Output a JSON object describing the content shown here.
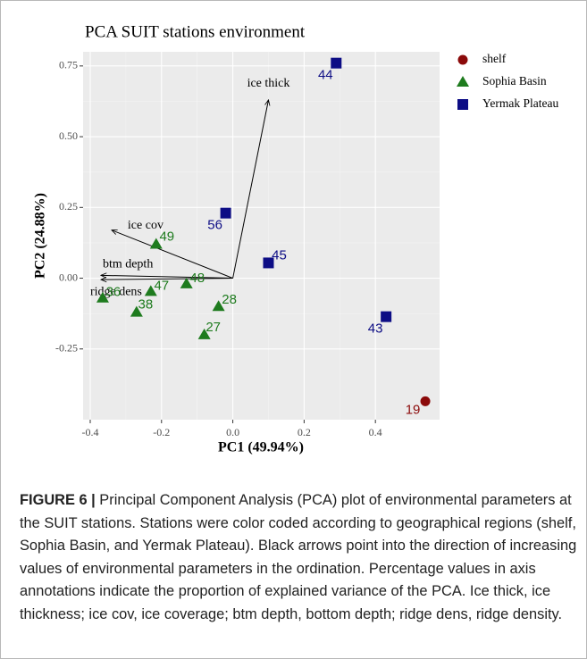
{
  "chart_data": {
    "type": "scatter",
    "title": "PCA SUIT stations environment",
    "x_label": "PC1 (49.94%)",
    "y_label": "PC2 (24.88%)",
    "xlim": [
      -0.42,
      0.58
    ],
    "ylim": [
      -0.5,
      0.8
    ],
    "xticks": [
      -0.4,
      -0.2,
      {
        "value": 0,
        "label": "0.0"
      },
      0.2,
      0.4
    ],
    "yticks": [
      -0.25,
      {
        "value": 0,
        "label": "0.00"
      },
      0.25,
      {
        "value": 0.5,
        "label": "0.50"
      },
      0.75
    ],
    "grid": true,
    "legend": "right",
    "series": [
      {
        "name": "shelf",
        "color": "#8b0a0a",
        "marker": "circle",
        "x": [
          0.54
        ],
        "y": [
          -0.435
        ],
        "labels": [
          "19"
        ]
      },
      {
        "name": "Sophia Basin",
        "color": "#1e7b1e",
        "marker": "triangle",
        "x": [
          -0.215,
          -0.13,
          -0.23,
          -0.04,
          -0.27,
          -0.08,
          -0.365
        ],
        "y": [
          0.12,
          -0.02,
          -0.047,
          -0.1,
          -0.12,
          -0.2,
          -0.07
        ],
        "labels": [
          "49",
          "48",
          "47",
          "28",
          "38",
          "27",
          "36"
        ]
      },
      {
        "name": "Yermak Plateau",
        "color": "#0d0d85",
        "marker": "square",
        "x": [
          0.29,
          -0.02,
          0.1,
          0.43
        ],
        "y": [
          0.76,
          0.23,
          0.054,
          -0.136
        ],
        "labels": [
          "44",
          "56",
          "45",
          "43"
        ]
      }
    ],
    "loadings": [
      {
        "name": "ice thick",
        "x": 0.1,
        "y": 0.63
      },
      {
        "name": "ice cov",
        "x": -0.34,
        "y": 0.17
      },
      {
        "name": "btm depth",
        "x": -0.37,
        "y": 0.01
      },
      {
        "name": "ridge dens",
        "x": -0.37,
        "y": -0.005
      }
    ]
  },
  "caption": {
    "label": "FIGURE 6 |",
    "text": "Principal Component Analysis (PCA) plot of environmental parameters at the SUIT stations. Stations were color coded according to geographical regions (shelf, Sophia Basin, and Yermak Plateau). Black arrows point into the direction of increasing values of environmental parameters in the ordination. Percentage values in axis annotations indicate the proportion of explained variance of the PCA. Ice thick, ice thickness; ice cov, ice coverage; btm depth, bottom depth; ridge dens, ridge density."
  }
}
